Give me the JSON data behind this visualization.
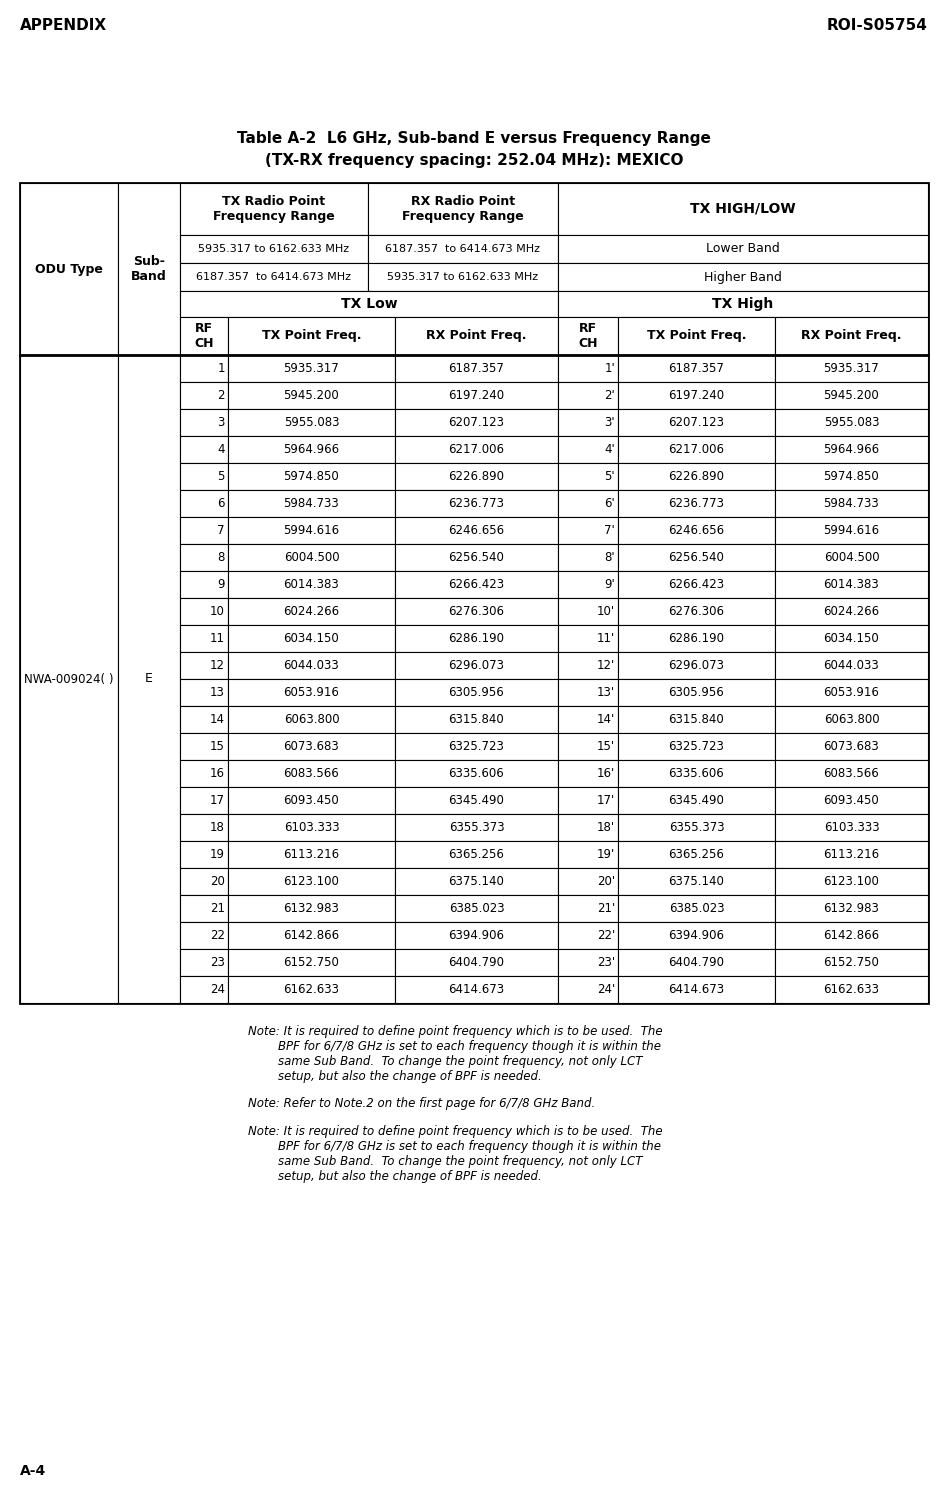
{
  "title_line1": "Table A-2  L6 GHz, Sub-band E versus Frequency Range",
  "title_line2": "(TX-RX frequency spacing: 252.04 MHz): MEXICO",
  "header_left": "APPENDIX",
  "header_right": "ROI-S05754",
  "footer_left": "A-4",
  "col1_header": "ODU Type",
  "col2_header": "Sub-\nBand",
  "col3_header": "TX Radio Point\nFrequency Range",
  "col4_header": "RX Radio Point\nFrequency Range",
  "col5_header": "TX HIGH/LOW",
  "lower_band_tx": "5935.317 to 6162.633 MHz",
  "lower_band_rx": "6187.357  to 6414.673 MHz",
  "lower_band_label": "Lower Band",
  "higher_band_tx": "6187.357  to 6414.673 MHz",
  "higher_band_rx": "5935.317 to 6162.633 MHz",
  "higher_band_label": "Higher Band",
  "tx_low_label": "TX Low",
  "tx_high_label": "TX High",
  "rfch_label": "RF\nCH",
  "tx_pt_label": "TX Point Freq.",
  "rx_pt_label": "RX Point Freq.",
  "odu_type_value": "NWA-009024( )",
  "sub_band_value": "E",
  "data_rows": [
    [
      1,
      "5935.317",
      "6187.357",
      "1'",
      "6187.357",
      "5935.317"
    ],
    [
      2,
      "5945.200",
      "6197.240",
      "2'",
      "6197.240",
      "5945.200"
    ],
    [
      3,
      "5955.083",
      "6207.123",
      "3'",
      "6207.123",
      "5955.083"
    ],
    [
      4,
      "5964.966",
      "6217.006",
      "4'",
      "6217.006",
      "5964.966"
    ],
    [
      5,
      "5974.850",
      "6226.890",
      "5'",
      "6226.890",
      "5974.850"
    ],
    [
      6,
      "5984.733",
      "6236.773",
      "6'",
      "6236.773",
      "5984.733"
    ],
    [
      7,
      "5994.616",
      "6246.656",
      "7'",
      "6246.656",
      "5994.616"
    ],
    [
      8,
      "6004.500",
      "6256.540",
      "8'",
      "6256.540",
      "6004.500"
    ],
    [
      9,
      "6014.383",
      "6266.423",
      "9'",
      "6266.423",
      "6014.383"
    ],
    [
      10,
      "6024.266",
      "6276.306",
      "10'",
      "6276.306",
      "6024.266"
    ],
    [
      11,
      "6034.150",
      "6286.190",
      "11'",
      "6286.190",
      "6034.150"
    ],
    [
      12,
      "6044.033",
      "6296.073",
      "12'",
      "6296.073",
      "6044.033"
    ],
    [
      13,
      "6053.916",
      "6305.956",
      "13'",
      "6305.956",
      "6053.916"
    ],
    [
      14,
      "6063.800",
      "6315.840",
      "14'",
      "6315.840",
      "6063.800"
    ],
    [
      15,
      "6073.683",
      "6325.723",
      "15'",
      "6325.723",
      "6073.683"
    ],
    [
      16,
      "6083.566",
      "6335.606",
      "16'",
      "6335.606",
      "6083.566"
    ],
    [
      17,
      "6093.450",
      "6345.490",
      "17'",
      "6345.490",
      "6093.450"
    ],
    [
      18,
      "6103.333",
      "6355.373",
      "18'",
      "6355.373",
      "6103.333"
    ],
    [
      19,
      "6113.216",
      "6365.256",
      "19'",
      "6365.256",
      "6113.216"
    ],
    [
      20,
      "6123.100",
      "6375.140",
      "20'",
      "6375.140",
      "6123.100"
    ],
    [
      21,
      "6132.983",
      "6385.023",
      "21'",
      "6385.023",
      "6132.983"
    ],
    [
      22,
      "6142.866",
      "6394.906",
      "22'",
      "6394.906",
      "6142.866"
    ],
    [
      23,
      "6152.750",
      "6404.790",
      "23'",
      "6404.790",
      "6152.750"
    ],
    [
      24,
      "6162.633",
      "6414.673",
      "24'",
      "6414.673",
      "6162.633"
    ]
  ],
  "bg_color": "#ffffff"
}
